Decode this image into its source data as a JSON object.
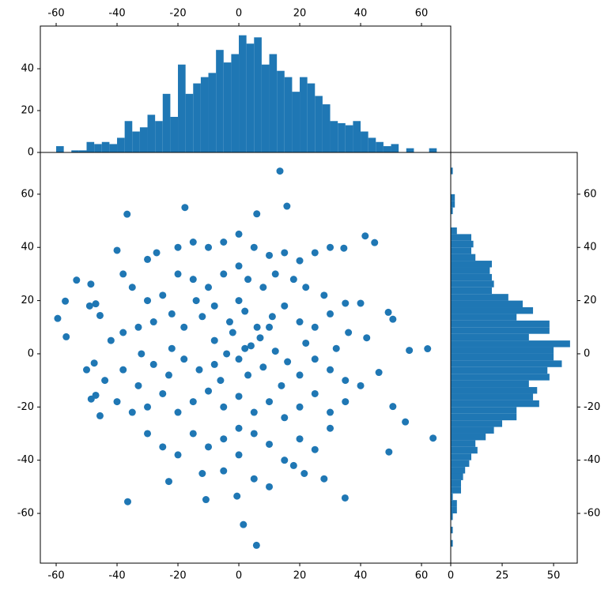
{
  "chart_data": [
    {
      "type": "scatter",
      "color": "#1f77b4",
      "xlim": [
        -65.2,
        69.6
      ],
      "ylim": [
        -78.7,
        75.7
      ],
      "xticks": [
        -60,
        -40,
        -20,
        0,
        20,
        40,
        60
      ],
      "yticks": [
        -60,
        -40,
        -20,
        0,
        20,
        40,
        60
      ],
      "x": [
        13.5,
        -59.5,
        -57,
        -56.7,
        -36.7,
        -17.7,
        5.9,
        15.8,
        -36.5,
        1.5,
        5.8,
        62,
        56,
        63.8,
        54.7,
        49.3,
        -0.6,
        34.9,
        -10.8,
        -23,
        41.5,
        44.6,
        -53.3,
        -48.6,
        -49,
        -47,
        -45.6,
        -47,
        -48.5,
        -45.6,
        -50,
        -47.5,
        49.1,
        50.6,
        50.6,
        46,
        28,
        21.5,
        -30,
        -27,
        -20,
        -15,
        -10,
        -5,
        0,
        5,
        10,
        15,
        20,
        25,
        30,
        34.5,
        -40,
        -38,
        -35,
        -30,
        -25,
        -20,
        -15,
        -10,
        -5,
        0,
        3,
        8,
        12,
        18,
        22,
        28,
        35,
        40,
        -42,
        -38,
        -33,
        -28,
        -22,
        -18,
        -12,
        -8,
        -3,
        2,
        6,
        11,
        15,
        20,
        25,
        30,
        36,
        42,
        -44,
        -38,
        -33,
        -28,
        -23,
        -18,
        -13,
        -8,
        -4,
        0,
        4,
        8,
        12,
        16,
        20,
        25,
        30,
        35,
        40,
        -40,
        -35,
        -30,
        -25,
        -20,
        -15,
        -10,
        -5,
        0,
        5,
        10,
        15,
        20,
        25,
        30,
        35,
        -30,
        -25,
        -20,
        -15,
        -10,
        -5,
        0,
        5,
        10,
        15,
        20,
        25,
        30,
        -12,
        -5,
        5,
        10,
        18,
        -8,
        -2,
        3,
        7,
        -6,
        2,
        10,
        -14,
        14,
        -22,
        22,
        0,
        0,
        -32,
        32
      ],
      "values": [
        68.7,
        13.3,
        19.8,
        6.4,
        52.5,
        55,
        52.6,
        55.5,
        -55.6,
        -64.2,
        -72,
        1.9,
        1.3,
        -31.7,
        -25.6,
        -36.9,
        -53.5,
        -54.2,
        -54.8,
        -48,
        44.3,
        41.8,
        27.7,
        26.2,
        18,
        18.8,
        14.4,
        -15.6,
        -17,
        -23.3,
        -6,
        -3.5,
        15.6,
        13,
        -19.8,
        -7,
        -47,
        -45,
        35.5,
        38,
        40,
        42,
        40,
        42,
        45,
        40,
        37,
        38,
        35,
        38,
        40,
        39.7,
        38.9,
        30,
        25,
        20,
        22,
        30,
        28,
        25,
        30,
        33,
        28,
        25,
        30,
        28,
        25,
        22,
        19,
        19,
        5,
        8,
        10,
        12,
        15,
        10,
        14,
        18,
        12,
        16,
        10,
        14,
        18,
        12,
        10,
        15,
        8,
        6,
        -10,
        -6,
        -12,
        -4,
        -8,
        -2,
        -6,
        -4,
        0,
        -2,
        3,
        -5,
        1,
        -3,
        -8,
        -2,
        -6,
        -10,
        -12,
        -18,
        -22,
        -20,
        -15,
        -22,
        -18,
        -14,
        -20,
        -16,
        -22,
        -18,
        -24,
        -20,
        -15,
        -22,
        -18,
        -30,
        -35,
        -38,
        -30,
        -35,
        -32,
        -38,
        -30,
        -34,
        -40,
        -32,
        -36,
        -28,
        -45,
        -44,
        -47,
        -50,
        -42,
        5,
        8,
        -8,
        6,
        -10,
        2,
        10,
        20,
        -12,
        2,
        4,
        20,
        -28,
        0,
        2
      ]
    },
    {
      "type": "histogram",
      "orientation": "vertical",
      "color": "#1f77b4",
      "xlim": [
        -65.2,
        69.6
      ],
      "ylim": [
        0,
        60.4
      ],
      "xtick_side": "top",
      "xticks": [
        -60,
        -40,
        -20,
        0,
        20,
        40,
        60
      ],
      "yticks": [
        0,
        20,
        40
      ],
      "bins": [
        -60,
        -57.5,
        -55,
        -52.5,
        -50,
        -47.5,
        -45,
        -42.5,
        -40,
        -37.5,
        -35,
        -32.5,
        -30,
        -27.5,
        -25,
        -22.5,
        -20,
        -17.5,
        -15,
        -12.5,
        -10,
        -7.5,
        -5,
        -2.5,
        0,
        2.5,
        5,
        7.5,
        10,
        12.5,
        15,
        17.5,
        20,
        22.5,
        25,
        27.5,
        30,
        32.5,
        35,
        37.5,
        40,
        42.5,
        45,
        47.5,
        50,
        52.5,
        55,
        57.5,
        60,
        62.5,
        65
      ],
      "values": [
        3,
        0,
        1,
        1,
        5,
        4,
        5,
        4,
        7,
        15,
        10,
        12,
        18,
        15,
        28,
        17,
        42,
        28,
        33,
        36,
        38,
        49,
        43,
        47,
        56,
        52,
        55,
        42,
        47,
        39,
        36,
        29,
        36,
        33,
        27,
        23,
        15,
        14,
        13,
        15,
        10,
        7,
        5,
        3,
        4,
        0,
        2,
        0,
        0,
        2
      ]
    },
    {
      "type": "histogram",
      "orientation": "horizontal",
      "color": "#1f77b4",
      "xlim": [
        0,
        61.5
      ],
      "ylim": [
        -78.7,
        75.7
      ],
      "ytick_side": "right",
      "xticks": [
        0,
        25,
        50
      ],
      "yticks": [
        -60,
        -40,
        -20,
        0,
        20,
        40,
        60
      ],
      "bins": [
        -72.5,
        -70,
        -67.5,
        -65,
        -62.5,
        -60,
        -57.5,
        -55,
        -52.5,
        -50,
        -47.5,
        -45,
        -42.5,
        -40,
        -37.5,
        -35,
        -32.5,
        -30,
        -27.5,
        -25,
        -22.5,
        -20,
        -17.5,
        -15,
        -12.5,
        -10,
        -7.5,
        -5,
        -2.5,
        0,
        2.5,
        5,
        7.5,
        10,
        12.5,
        15,
        17.5,
        20,
        22.5,
        25,
        27.5,
        30,
        32.5,
        35,
        37.5,
        40,
        42.5,
        45,
        47.5,
        50,
        52.5,
        55,
        57.5,
        60,
        62.5,
        65,
        67.5,
        70
      ],
      "values": [
        1,
        0,
        1,
        0,
        1,
        3,
        3,
        1,
        5,
        5,
        6,
        7,
        9,
        10,
        13,
        12,
        17,
        21,
        25,
        32,
        32,
        43,
        40,
        42,
        38,
        48,
        47,
        54,
        50,
        50,
        58,
        38,
        48,
        48,
        32,
        40,
        35,
        28,
        20,
        21,
        20,
        19,
        20,
        12,
        10,
        11,
        10,
        3,
        0,
        0,
        1,
        2,
        2,
        0,
        0,
        0,
        1
      ]
    }
  ]
}
